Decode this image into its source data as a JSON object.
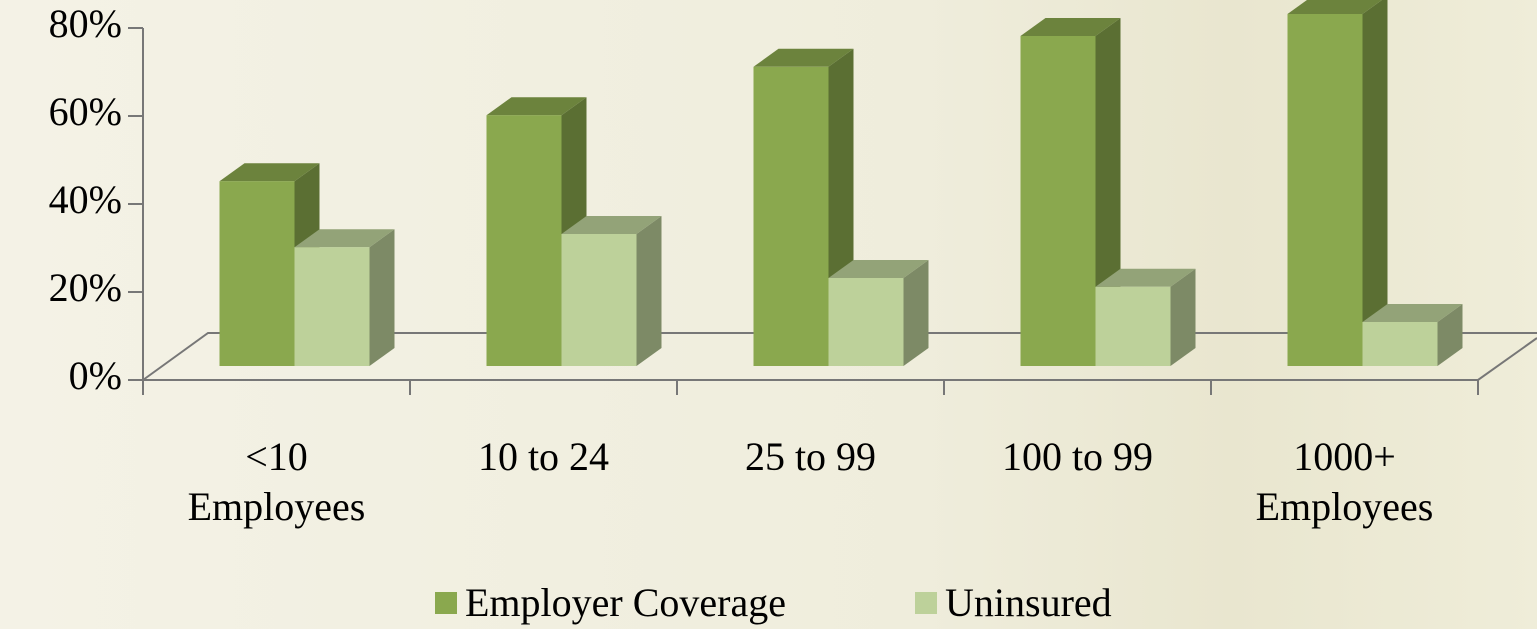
{
  "chart_data": {
    "type": "bar3d",
    "categories": [
      "<10 Employees",
      "10 to 24",
      "25 to 99",
      "100 to 99",
      "1000+ Employees"
    ],
    "series": [
      {
        "name": "Employer Coverage",
        "color": "#8aa84e",
        "values": [
          42,
          57,
          68,
          75,
          80
        ]
      },
      {
        "name": "Uninsured",
        "color": "#bdd19a",
        "values": [
          27,
          30,
          20,
          18,
          10
        ]
      }
    ],
    "ylim": [
      0,
      80
    ],
    "yticks": [
      {
        "value": 0,
        "label": "0%"
      },
      {
        "value": 20,
        "label": "20%"
      },
      {
        "value": 40,
        "label": "40%"
      },
      {
        "value": 60,
        "label": "60%"
      },
      {
        "value": 80,
        "label": "80%"
      }
    ],
    "legend": "bottom"
  }
}
